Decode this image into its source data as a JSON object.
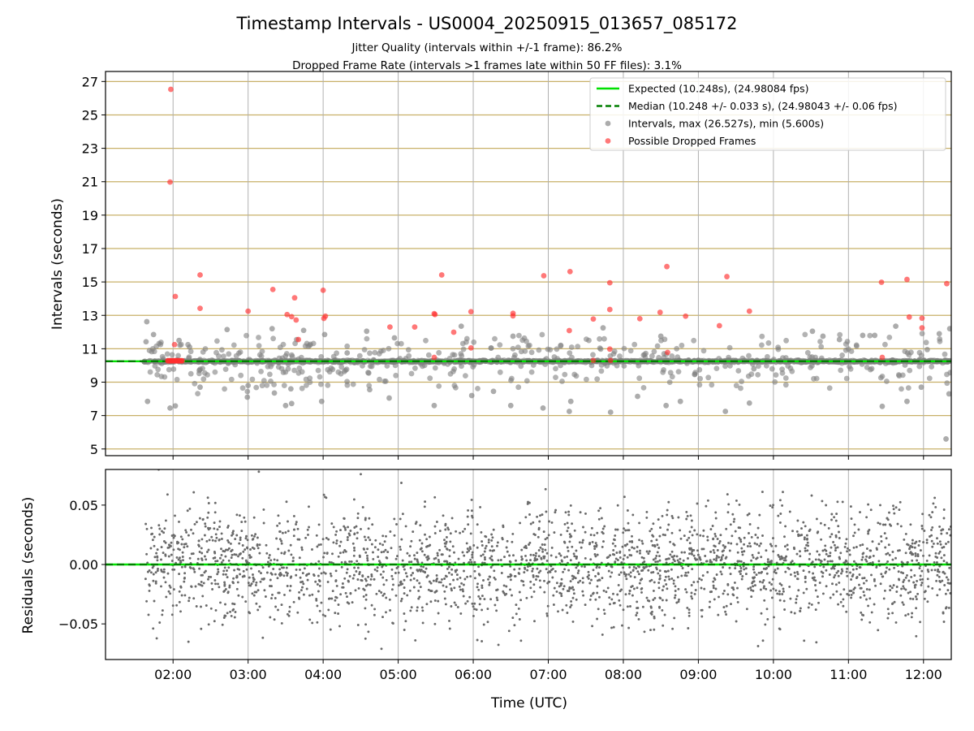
{
  "chart_data": {
    "type": "scatter",
    "title": "Timestamp Intervals - US0004_20250915_013657_085172",
    "subtitles": [
      "Jitter Quality (intervals within +/-1 frame): 86.2%",
      "Dropped Frame Rate (intervals >1 frames late within 50 FF files): 3.1%"
    ],
    "xlabel": "Time (UTC)",
    "x_tick_labels": [
      "02:00",
      "03:00",
      "04:00",
      "05:00",
      "06:00",
      "07:00",
      "08:00",
      "09:00",
      "10:00",
      "11:00",
      "12:00"
    ],
    "x_tick_hours": [
      2,
      3,
      4,
      5,
      6,
      7,
      8,
      9,
      10,
      11,
      12
    ],
    "xlim_hours": [
      1.1,
      12.37
    ],
    "data_x_range_hours": [
      1.61,
      12.37
    ],
    "grid": true,
    "top_panel": {
      "ylabel": "Intervals (seconds)",
      "ylim": [
        4.6,
        27.6
      ],
      "y_ticks": [
        5,
        7,
        9,
        11,
        13,
        15,
        17,
        19,
        21,
        23,
        25,
        27
      ],
      "y_tick_labels": [
        "5",
        "7",
        "9",
        "11",
        "13",
        "15",
        "17",
        "19",
        "21",
        "23",
        "25",
        "27"
      ],
      "expected_interval": 10.248,
      "median_interval": 10.248,
      "interval_max": 26.527,
      "interval_min": 5.6,
      "legend_position": "top-right",
      "legend": [
        {
          "label": "Expected (10.248s), (24.98084 fps)",
          "style": "line",
          "color": "#00e000"
        },
        {
          "label": "Median (10.248 +/- 0.033 s), (24.98043 +/- 0.06 fps)",
          "style": "dashed",
          "color": "#007f00"
        },
        {
          "label": "Intervals, max (26.527s), min (5.600s)",
          "style": "marker",
          "color": "#808080"
        },
        {
          "label": "Possible Dropped Frames",
          "style": "marker",
          "color": "#ff3030"
        }
      ],
      "dropped_frames": [
        {
          "x": 1.97,
          "y": 26.53
        },
        {
          "x": 1.96,
          "y": 20.98
        },
        {
          "x": 2.03,
          "y": 14.13
        },
        {
          "x": 2.36,
          "y": 15.42
        },
        {
          "x": 2.36,
          "y": 13.42
        },
        {
          "x": 2.02,
          "y": 11.25
        },
        {
          "x": 3.0,
          "y": 13.25
        },
        {
          "x": 3.33,
          "y": 14.55
        },
        {
          "x": 3.52,
          "y": 13.05
        },
        {
          "x": 3.58,
          "y": 12.92
        },
        {
          "x": 3.62,
          "y": 14.05
        },
        {
          "x": 3.64,
          "y": 12.72
        },
        {
          "x": 3.67,
          "y": 11.55
        },
        {
          "x": 4.0,
          "y": 14.5
        },
        {
          "x": 4.03,
          "y": 12.95
        },
        {
          "x": 4.01,
          "y": 12.82
        },
        {
          "x": 4.89,
          "y": 12.3
        },
        {
          "x": 5.22,
          "y": 12.3
        },
        {
          "x": 5.48,
          "y": 13.1
        },
        {
          "x": 5.49,
          "y": 13.05
        },
        {
          "x": 5.48,
          "y": 10.48
        },
        {
          "x": 5.58,
          "y": 15.42
        },
        {
          "x": 5.74,
          "y": 11.99
        },
        {
          "x": 5.97,
          "y": 13.22
        },
        {
          "x": 5.97,
          "y": 11.05
        },
        {
          "x": 6.53,
          "y": 13.12
        },
        {
          "x": 6.53,
          "y": 12.97
        },
        {
          "x": 6.94,
          "y": 15.37
        },
        {
          "x": 7.29,
          "y": 15.62
        },
        {
          "x": 7.28,
          "y": 12.09
        },
        {
          "x": 7.6,
          "y": 12.78
        },
        {
          "x": 7.6,
          "y": 10.3
        },
        {
          "x": 7.82,
          "y": 14.95
        },
        {
          "x": 7.82,
          "y": 13.35
        },
        {
          "x": 7.82,
          "y": 10.98
        },
        {
          "x": 7.83,
          "y": 10.3
        },
        {
          "x": 8.22,
          "y": 12.8
        },
        {
          "x": 8.49,
          "y": 13.18
        },
        {
          "x": 8.58,
          "y": 15.92
        },
        {
          "x": 8.59,
          "y": 10.78
        },
        {
          "x": 8.83,
          "y": 12.95
        },
        {
          "x": 9.28,
          "y": 12.38
        },
        {
          "x": 9.38,
          "y": 15.32
        },
        {
          "x": 9.68,
          "y": 13.25
        },
        {
          "x": 11.44,
          "y": 14.98
        },
        {
          "x": 11.45,
          "y": 10.48
        },
        {
          "x": 11.78,
          "y": 15.15
        },
        {
          "x": 11.81,
          "y": 12.9
        },
        {
          "x": 11.98,
          "y": 12.83
        },
        {
          "x": 11.98,
          "y": 12.25
        },
        {
          "x": 12.31,
          "y": 14.9
        }
      ],
      "dropped_cluster": {
        "x_range": [
          1.93,
          2.12
        ],
        "y": 10.28
      },
      "outlier_intervals": [
        {
          "x": 1.65,
          "y": 12.62
        },
        {
          "x": 1.64,
          "y": 11.42
        },
        {
          "x": 1.66,
          "y": 7.85
        },
        {
          "x": 1.74,
          "y": 11.85
        },
        {
          "x": 1.85,
          "y": 10.12
        },
        {
          "x": 1.96,
          "y": 7.45
        },
        {
          "x": 2.03,
          "y": 7.58
        },
        {
          "x": 2.08,
          "y": 11.5
        },
        {
          "x": 2.22,
          "y": 11.1
        },
        {
          "x": 2.35,
          "y": 9.7
        },
        {
          "x": 2.36,
          "y": 8.7
        },
        {
          "x": 2.72,
          "y": 12.15
        },
        {
          "x": 2.99,
          "y": 8.1
        },
        {
          "x": 3.0,
          "y": 8.8
        },
        {
          "x": 3.32,
          "y": 12.2
        },
        {
          "x": 3.35,
          "y": 8.35
        },
        {
          "x": 3.5,
          "y": 7.6
        },
        {
          "x": 3.58,
          "y": 7.72
        },
        {
          "x": 3.57,
          "y": 8.6
        },
        {
          "x": 3.74,
          "y": 12.1
        },
        {
          "x": 3.98,
          "y": 7.85
        },
        {
          "x": 4.02,
          "y": 11.85
        },
        {
          "x": 4.32,
          "y": 10.75
        },
        {
          "x": 4.58,
          "y": 12.05
        },
        {
          "x": 4.62,
          "y": 8.55
        },
        {
          "x": 4.88,
          "y": 8.05
        },
        {
          "x": 4.95,
          "y": 11.65
        },
        {
          "x": 5.48,
          "y": 7.6
        },
        {
          "x": 5.84,
          "y": 12.35
        },
        {
          "x": 5.98,
          "y": 8.2
        },
        {
          "x": 6.27,
          "y": 8.45
        },
        {
          "x": 6.5,
          "y": 7.6
        },
        {
          "x": 6.53,
          "y": 11.75
        },
        {
          "x": 6.93,
          "y": 7.45
        },
        {
          "x": 7.28,
          "y": 7.25
        },
        {
          "x": 7.3,
          "y": 7.85
        },
        {
          "x": 7.73,
          "y": 12.25
        },
        {
          "x": 7.83,
          "y": 7.2
        },
        {
          "x": 8.19,
          "y": 8.15
        },
        {
          "x": 8.5,
          "y": 11.75
        },
        {
          "x": 8.57,
          "y": 7.6
        },
        {
          "x": 8.76,
          "y": 7.85
        },
        {
          "x": 9.36,
          "y": 7.25
        },
        {
          "x": 9.68,
          "y": 7.75
        },
        {
          "x": 9.74,
          "y": 9.8
        },
        {
          "x": 10.52,
          "y": 12.05
        },
        {
          "x": 10.66,
          "y": 11.75
        },
        {
          "x": 10.88,
          "y": 11.55
        },
        {
          "x": 11.19,
          "y": 11.8
        },
        {
          "x": 11.35,
          "y": 11.8
        },
        {
          "x": 11.45,
          "y": 7.55
        },
        {
          "x": 11.63,
          "y": 12.35
        },
        {
          "x": 11.78,
          "y": 7.85
        },
        {
          "x": 11.97,
          "y": 8.7
        },
        {
          "x": 12.05,
          "y": 10.95
        },
        {
          "x": 12.21,
          "y": 11.9
        },
        {
          "x": 12.3,
          "y": 5.6
        },
        {
          "x": 12.35,
          "y": 12.2
        },
        {
          "x": 12.34,
          "y": 8.3
        }
      ]
    },
    "bottom_panel": {
      "ylabel": "Residuals (seconds)",
      "ylim": [
        -0.08,
        0.08
      ],
      "y_ticks": [
        -0.05,
        0.0,
        0.05
      ],
      "y_tick_labels": [
        "−0.05",
        "0.00",
        "0.05"
      ],
      "residual_spread": 0.033,
      "zero_line": 0.0
    },
    "colors": {
      "intervals": "#808080",
      "dropped": "#ff3030",
      "expected": "#00e000",
      "median": "#007f00",
      "hgrid": "#c8b068",
      "vgrid": "#b0b0b0"
    }
  }
}
